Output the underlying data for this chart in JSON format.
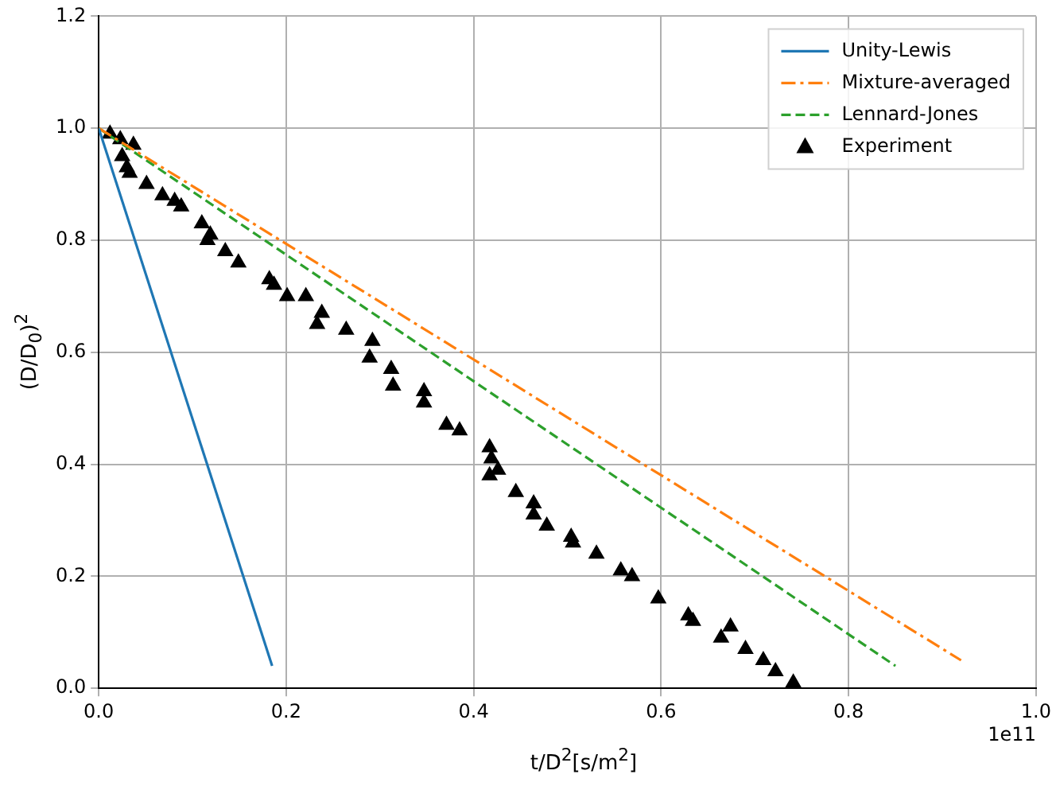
{
  "chart_data": {
    "type": "line",
    "xlabel": "t/D$^{2}$[s/m$^{2}$]",
    "ylabel": "(D/D$_{0}$)$^{2}$",
    "xlim": [
      0,
      1
    ],
    "ylim": [
      0,
      1.2
    ],
    "xticks": [
      {
        "value": 0,
        "label": "0.0"
      },
      {
        "value": 0.2,
        "label": "0.2"
      },
      {
        "value": 0.4,
        "label": "0.4"
      },
      {
        "value": 0.6,
        "label": "0.6"
      },
      {
        "value": 0.8,
        "label": "0.8"
      },
      {
        "value": 1,
        "label": "1.0"
      }
    ],
    "yticks": [
      {
        "value": 0,
        "label": "0.0"
      },
      {
        "value": 0.2,
        "label": "0.2"
      },
      {
        "value": 0.4,
        "label": "0.4"
      },
      {
        "value": 0.6,
        "label": "0.6"
      },
      {
        "value": 0.8,
        "label": "0.8"
      },
      {
        "value": 1,
        "label": "1.0"
      },
      {
        "value": 1.2,
        "label": "1.2"
      }
    ],
    "grid": true,
    "legend": "top right",
    "annotations": [
      "1e11"
    ],
    "series": [
      {
        "name": "Unity-Lewis",
        "color": "#1f77b4",
        "line_style": "solid",
        "marker": "none",
        "x": [
          0,
          0.185
        ],
        "values": [
          1,
          0.04
        ]
      },
      {
        "name": "Mixture-averaged",
        "color": "#ff7f0e",
        "line_style": "dashdot",
        "marker": "none",
        "x": [
          0,
          0.92
        ],
        "values": [
          1,
          0.05
        ]
      },
      {
        "name": "Lennard-Jones",
        "color": "#2ca02c",
        "line_style": "dashed",
        "marker": "none",
        "x": [
          0,
          0.85
        ],
        "values": [
          1,
          0.04
        ]
      },
      {
        "name": "Experiment",
        "type": "scatter",
        "color": "#000000",
        "marker": "triangle",
        "x": [
          0.012,
          0.023,
          0.037,
          0.025,
          0.03,
          0.033,
          0.051,
          0.068,
          0.081,
          0.088,
          0.11,
          0.119,
          0.116,
          0.135,
          0.149,
          0.182,
          0.187,
          0.201,
          0.221,
          0.238,
          0.233,
          0.264,
          0.292,
          0.289,
          0.312,
          0.314,
          0.347,
          0.347,
          0.371,
          0.385,
          0.417,
          0.419,
          0.426,
          0.417,
          0.445,
          0.464,
          0.464,
          0.478,
          0.504,
          0.506,
          0.531,
          0.557,
          0.569,
          0.597,
          0.629,
          0.634,
          0.664,
          0.674,
          0.69,
          0.709,
          0.722,
          0.741
        ],
        "values": [
          0.99,
          0.98,
          0.97,
          0.95,
          0.93,
          0.92,
          0.9,
          0.88,
          0.87,
          0.86,
          0.83,
          0.81,
          0.8,
          0.78,
          0.76,
          0.73,
          0.72,
          0.7,
          0.7,
          0.67,
          0.65,
          0.64,
          0.62,
          0.59,
          0.57,
          0.54,
          0.53,
          0.51,
          0.47,
          0.46,
          0.43,
          0.41,
          0.39,
          0.38,
          0.35,
          0.33,
          0.31,
          0.29,
          0.27,
          0.26,
          0.24,
          0.21,
          0.2,
          0.16,
          0.13,
          0.12,
          0.09,
          0.11,
          0.07,
          0.05,
          0.03,
          0.01
        ]
      }
    ]
  }
}
